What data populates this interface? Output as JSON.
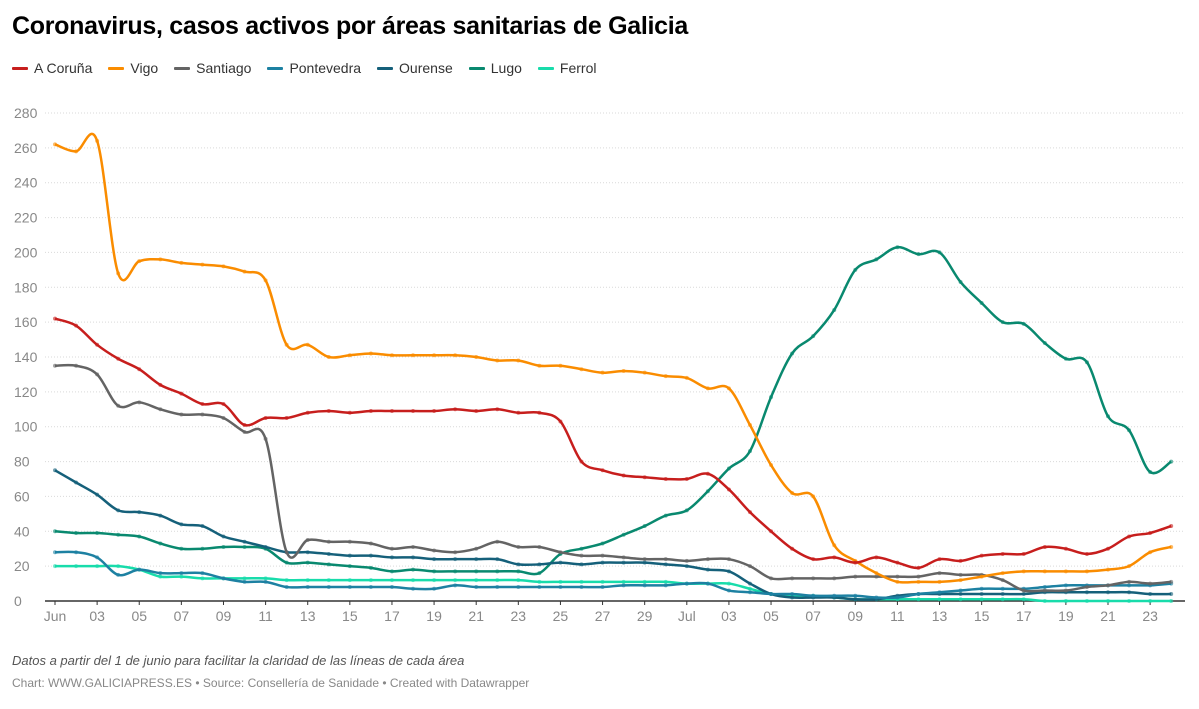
{
  "chart_data": {
    "type": "line",
    "title": "Coronavirus, casos activos por áreas sanitarias de Galicia",
    "legend_position": "top-left",
    "grid": true,
    "ylim": [
      0,
      280
    ],
    "y_ticks": [
      0,
      20,
      40,
      60,
      80,
      100,
      120,
      140,
      160,
      180,
      200,
      220,
      240,
      260,
      280
    ],
    "x_tick_labels": [
      "Jun",
      "03",
      "05",
      "07",
      "09",
      "11",
      "13",
      "15",
      "17",
      "19",
      "21",
      "23",
      "25",
      "27",
      "29",
      "Jul",
      "03",
      "05",
      "07",
      "09",
      "11",
      "13",
      "15",
      "17",
      "19",
      "21",
      "23"
    ],
    "x_start": "2020-06-01",
    "x_end": "2020-07-24",
    "series": [
      {
        "name": "A Coruña",
        "color": "#c71e1d",
        "values": [
          162,
          158,
          147,
          139,
          133,
          124,
          119,
          113,
          113,
          101,
          105,
          105,
          108,
          109,
          108,
          109,
          109,
          109,
          109,
          110,
          109,
          110,
          108,
          108,
          103,
          80,
          75,
          72,
          71,
          70,
          70,
          73,
          64,
          51,
          40,
          30,
          24,
          25,
          22,
          25,
          22,
          19,
          24,
          23,
          26,
          27,
          27,
          31,
          30,
          27,
          30,
          37,
          39,
          43
        ]
      },
      {
        "name": "Vigo",
        "color": "#fa8c00",
        "values": [
          262,
          258,
          264,
          188,
          195,
          196,
          194,
          193,
          192,
          189,
          184,
          147,
          147,
          140,
          141,
          142,
          141,
          141,
          141,
          141,
          140,
          138,
          138,
          135,
          135,
          133,
          131,
          132,
          131,
          129,
          128,
          122,
          122,
          101,
          78,
          62,
          60,
          32,
          23,
          16,
          11,
          11,
          11,
          12,
          14,
          16,
          17,
          17,
          17,
          17,
          18,
          20,
          28,
          31
        ]
      },
      {
        "name": "Santiago",
        "color": "#646464",
        "values": [
          135,
          135,
          130,
          112,
          114,
          110,
          107,
          107,
          105,
          97,
          93,
          28,
          35,
          34,
          34,
          33,
          30,
          31,
          29,
          28,
          30,
          34,
          31,
          31,
          28,
          26,
          26,
          25,
          24,
          24,
          23,
          24,
          24,
          20,
          13,
          13,
          13,
          13,
          14,
          14,
          14,
          14,
          16,
          15,
          15,
          12,
          6,
          6,
          6,
          8,
          9,
          11,
          10,
          11
        ]
      },
      {
        "name": "Pontevedra",
        "color": "#1d81a2",
        "values": [
          28,
          28,
          25,
          15,
          18,
          16,
          16,
          16,
          13,
          11,
          11,
          8,
          8,
          8,
          8,
          8,
          8,
          7,
          7,
          9,
          8,
          8,
          8,
          8,
          8,
          8,
          8,
          9,
          9,
          9,
          10,
          10,
          6,
          5,
          4,
          4,
          3,
          3,
          3,
          2,
          2,
          4,
          5,
          6,
          7,
          7,
          7,
          8,
          9,
          9,
          9,
          9,
          9,
          10
        ]
      },
      {
        "name": "Ourense",
        "color": "#15607a",
        "values": [
          75,
          68,
          61,
          52,
          51,
          49,
          44,
          43,
          37,
          34,
          31,
          28,
          28,
          27,
          26,
          26,
          25,
          25,
          24,
          24,
          24,
          24,
          21,
          21,
          22,
          21,
          22,
          22,
          22,
          21,
          20,
          18,
          17,
          10,
          4,
          2,
          2,
          2,
          1,
          1,
          3,
          4,
          4,
          4,
          4,
          4,
          4,
          5,
          5,
          5,
          5,
          5,
          4,
          4
        ]
      },
      {
        "name": "Lugo",
        "color": "#09896f",
        "values": [
          40,
          39,
          39,
          38,
          37,
          33,
          30,
          30,
          31,
          31,
          30,
          22,
          22,
          21,
          20,
          19,
          17,
          18,
          17,
          17,
          17,
          17,
          17,
          16,
          27,
          30,
          33,
          38,
          43,
          49,
          52,
          63,
          76,
          86,
          117,
          142,
          152,
          167,
          190,
          196,
          203,
          199,
          200,
          183,
          171,
          160,
          159,
          148,
          139,
          137,
          106,
          98,
          74,
          80
        ]
      },
      {
        "name": "Ferrol",
        "color": "#18dcab",
        "values": [
          20,
          20,
          20,
          20,
          18,
          14,
          14,
          13,
          13,
          13,
          13,
          12,
          12,
          12,
          12,
          12,
          12,
          12,
          12,
          12,
          12,
          12,
          12,
          11,
          11,
          11,
          11,
          11,
          11,
          11,
          10,
          10,
          10,
          7,
          4,
          3,
          3,
          2,
          1,
          1,
          1,
          1,
          1,
          1,
          1,
          1,
          1,
          0,
          0,
          0,
          0,
          0,
          0,
          0
        ]
      }
    ]
  },
  "note": "Datos a partir del 1 de junio para facilitar la claridad de las líneas de cada área",
  "footer": "Chart: WWW.GALICIAPRESS.ES • Source: Consellería de Sanidade • Created with Datawrapper"
}
